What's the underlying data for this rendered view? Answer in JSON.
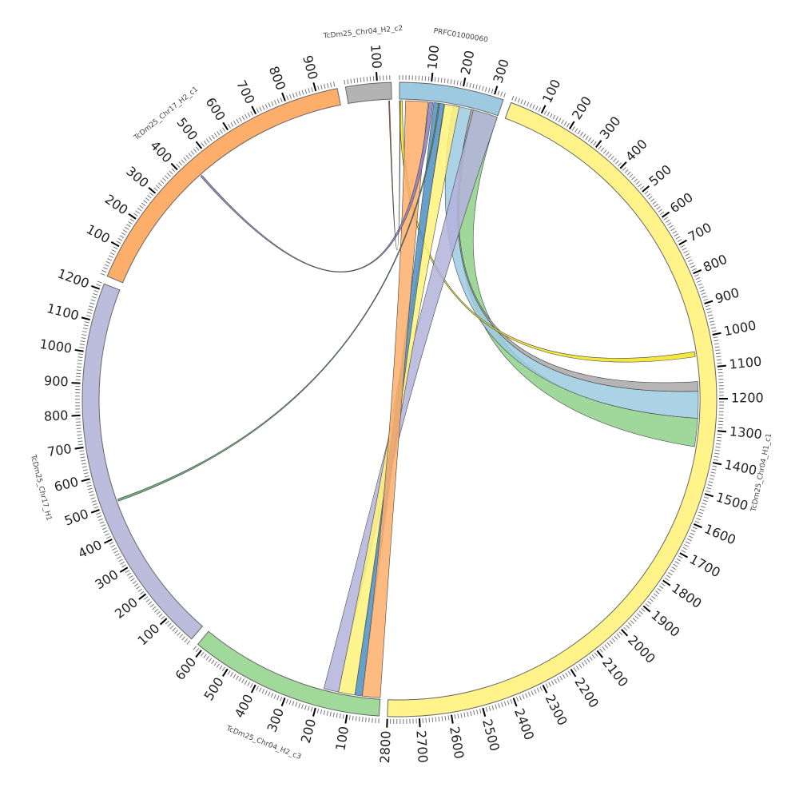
{
  "chart_data": {
    "type": "chord",
    "title": "",
    "units_per_major_tick": 100,
    "units_per_minor_tick": 10,
    "segments": [
      {
        "name": "PRFC01000060",
        "length": 331,
        "color": "#9ecae1"
      },
      {
        "name": "TcDm25_Chr04_H1_c1",
        "length": 2800,
        "color": "#fff38a"
      },
      {
        "name": "TcDm25_Chr04_H2_c3",
        "length": 620,
        "color": "#a1d99b"
      },
      {
        "name": "TcDm25_Chr17_H1",
        "length": 1220,
        "color": "#bcbddc"
      },
      {
        "name": "TcDm25_Chr17_H2_c1",
        "length": 967,
        "color": "#fdae6b"
      },
      {
        "name": "TcDm25_Chr04_H2_c2",
        "length": 144,
        "color": "#b3b3b3"
      }
    ],
    "links": [
      {
        "source": "PRFC01000060",
        "s": [
          248,
          331
        ],
        "target": "TcDm25_Chr04_H1_c1",
        "t": [
          1265,
          1360
        ],
        "color": "#8fd18a"
      },
      {
        "source": "PRFC01000060",
        "s": [
          180,
          241
        ],
        "target": "TcDm25_Chr04_H1_c1",
        "t": [
          1175,
          1265
        ],
        "color": "#9ecae1"
      },
      {
        "source": "PRFC01000060",
        "s": [
          241,
          248
        ],
        "target": "TcDm25_Chr04_H1_c1",
        "t": [
          1143,
          1175
        ],
        "color": "#a8a8a8"
      },
      {
        "source": "PRFC01000060",
        "s": [
          0,
          10
        ],
        "target": "TcDm25_Chr04_H1_c1",
        "t": [
          1043,
          1060
        ],
        "color": "#f2e31c"
      },
      {
        "source": "PRFC01000060",
        "s": [
          248,
          331
        ],
        "target": "TcDm25_Chr04_H2_c3",
        "t": [
          140,
          190
        ],
        "color": "#b3b3dc"
      },
      {
        "source": "PRFC01000060",
        "s": [
          151,
          200
        ],
        "target": "TcDm25_Chr04_H2_c3",
        "t": [
          85,
          140
        ],
        "color": "#fff37a"
      },
      {
        "source": "PRFC01000060",
        "s": [
          114,
          149
        ],
        "target": "TcDm25_Chr04_H2_c3",
        "t": [
          60,
          85
        ],
        "color": "#4f8fc0"
      },
      {
        "source": "PRFC01000060",
        "s": [
          20,
          95
        ],
        "target": "TcDm25_Chr04_H2_c3",
        "t": [
          0,
          60
        ],
        "color": "#fdae6b"
      },
      {
        "source": "PRFC01000060",
        "s": [
          98,
          111
        ],
        "target": "TcDm25_Chr17_H2_c1",
        "t": [
          440,
          446
        ],
        "color": "#8e7cc3"
      },
      {
        "source": "PRFC01000060",
        "s": [
          130,
          134
        ],
        "target": "TcDm25_Chr17_H1",
        "t": [
          505,
          512
        ],
        "color": "#5aa46a"
      },
      {
        "source": "TcDm25_Chr04_H2_c2",
        "s": [
          134,
          137
        ],
        "target": "PRFC01000060",
        "t": [
          1,
          3
        ],
        "color": "#c0502a"
      }
    ]
  }
}
